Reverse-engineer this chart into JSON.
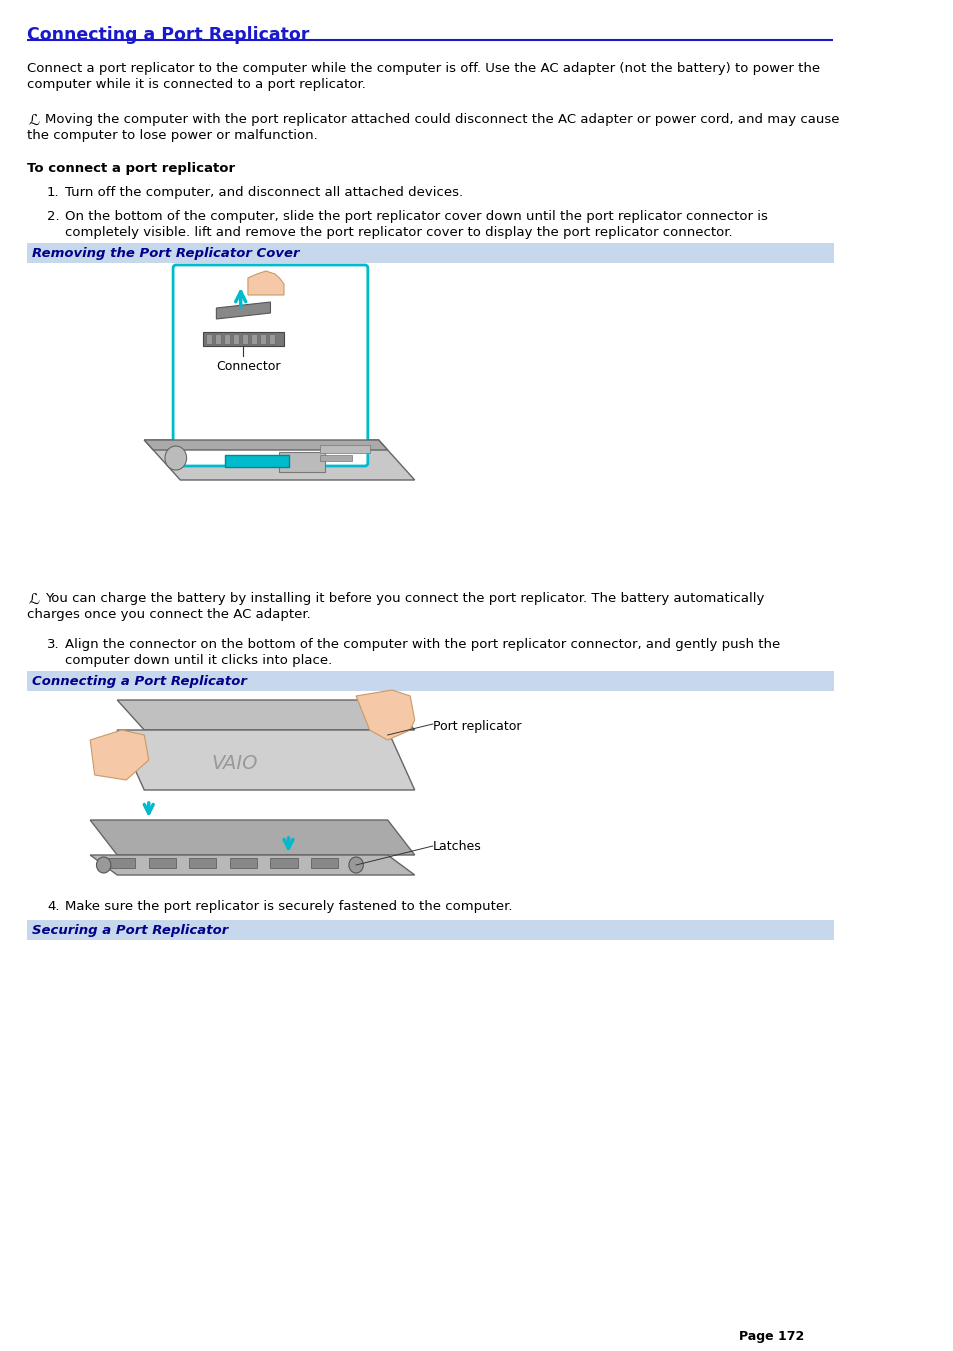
{
  "title": "Connecting a Port Replicator",
  "title_color": "#1a1acc",
  "bg_color": "#ffffff",
  "header_line_color": "#1a1acc",
  "body_text_color": "#000000",
  "page_num": "Page 172",
  "para1_line1": "Connect a port replicator to the computer while the computer is off. Use the AC adapter (not the battery) to power the",
  "para1_line2": "computer while it is connected to a port replicator.",
  "note1_line1": "Moving the computer with the port replicator attached could disconnect the AC adapter or power cord, and may cause",
  "note1_line2": "the computer to lose power or malfunction.",
  "bold_heading": "To connect a port replicator",
  "step1": "Turn off the computer, and disconnect all attached devices.",
  "step2_line1": "On the bottom of the computer, slide the port replicator cover down until the port replicator connector is",
  "step2_line2": "completely visible. lift and remove the port replicator cover to display the port replicator connector.",
  "section1_label": "Removing the Port Replicator Cover",
  "connector_label": "Connector",
  "note2_line1": "You can charge the battery by installing it before you connect the port replicator. The battery automatically",
  "note2_line2": "charges once you connect the AC adapter.",
  "step3_line1": "Align the connector on the bottom of the computer with the port replicator connector, and gently push the",
  "step3_line2": "computer down until it clicks into place.",
  "section2_label": "Connecting a Port Replicator",
  "port_replicator_label": "Port replicator",
  "latches_label": "Latches",
  "step4": "Make sure the port replicator is securely fastened to the computer.",
  "section3_label": "Securing a Port Replicator",
  "section_bar_color": "#c8d8ec",
  "section_text_color": "#00008b",
  "cyan_color": "#00bbcc",
  "connector_box_color": "#44ccdd"
}
